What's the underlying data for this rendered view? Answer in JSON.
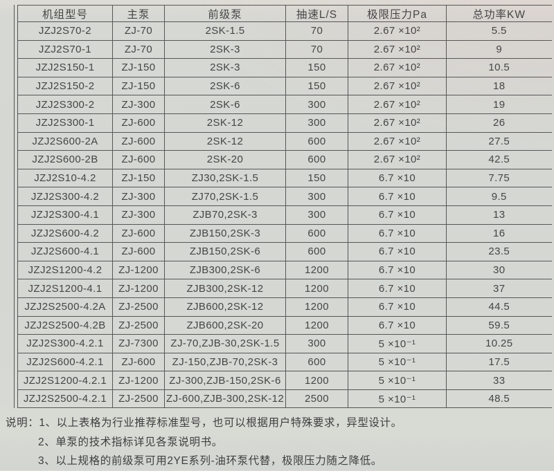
{
  "colors": {
    "paper": "#d5d7d2",
    "ink": "#454545",
    "line": "#565656"
  },
  "table": {
    "headers": [
      "机组型号",
      "主泵",
      "前级泵",
      "抽速L/S",
      "极限压力Pa",
      "总功率KW"
    ],
    "rows": [
      [
        "JZJ2S70-2",
        "ZJ-70",
        "2SK-1.5",
        "70",
        "2.67 ×10²",
        "5.5"
      ],
      [
        "JZJ2S70-1",
        "ZJ-70",
        "2SK-3",
        "70",
        "2.67 ×10²",
        "9"
      ],
      [
        "JZJ2S150-1",
        "ZJ-150",
        "2SK-3",
        "150",
        "2.67 ×10²",
        "10.5"
      ],
      [
        "JZJ2S150-2",
        "ZJ-150",
        "2SK-6",
        "150",
        "2.67 ×10²",
        "18"
      ],
      [
        "JZJ2S300-2",
        "ZJ-300",
        "2SK-6",
        "300",
        "2.67 ×10²",
        "19"
      ],
      [
        "JZJ2S300-1",
        "ZJ-600",
        "2SK-12",
        "300",
        "2.67 ×10²",
        "26"
      ],
      [
        "JZJ2S600-2A",
        "ZJ-600",
        "2SK-12",
        "600",
        "2.67 ×10²",
        "27.5"
      ],
      [
        "JZJ2S600-2B",
        "ZJ-600",
        "2SK-20",
        "600",
        "2.67 ×10²",
        "42.5"
      ],
      [
        "JZJ2S10-4.2",
        "ZJ-150",
        "ZJ30,2SK-1.5",
        "150",
        "6.7 ×10",
        "7.75"
      ],
      [
        "JZJ2S300-4.2",
        "ZJ-300",
        "ZJ70,2SK-1.5",
        "300",
        "6.7 ×10",
        "9.5"
      ],
      [
        "JZJ2S300-4.1",
        "ZJ-300",
        "ZJB70,2SK-3",
        "300",
        "6.7 ×10",
        "13"
      ],
      [
        "JZJ2S600-4.2",
        "ZJ-600",
        "ZJB150,2SK-3",
        "600",
        "6.7 ×10",
        "16"
      ],
      [
        "JZJ2S600-4.1",
        "ZJ-600",
        "ZJB150,2SK-6",
        "600",
        "6.7 ×10",
        "23.5"
      ],
      [
        "JZJ2S1200-4.2",
        "ZJ-1200",
        "ZJB300,2SK-6",
        "1200",
        "6.7 ×10",
        "30"
      ],
      [
        "JZJ2S1200-4.1",
        "ZJ-1200",
        "ZJB300,2SK-12",
        "1200",
        "6.7 ×10",
        "37"
      ],
      [
        "JZJ2S2500-4.2A",
        "ZJ-2500",
        "ZJB600,2SK-12",
        "1200",
        "6.7 ×10",
        "44.5"
      ],
      [
        "JZJ2S2500-4.2B",
        "ZJ-2500",
        "ZJB600,2SK-20",
        "1200",
        "6.7 ×10",
        "59.5"
      ],
      [
        "JZJ2S300-4.2.1",
        "ZJ-7300",
        "ZJ-70,ZJB-30,2SK-1.5",
        "300",
        "5 ×10⁻¹",
        "10.25"
      ],
      [
        "JZJ2S600-4.2.1",
        "ZJ-600",
        "ZJ-150,ZJB-70,2SK-3",
        "600",
        "5 ×10⁻¹",
        "17.5"
      ],
      [
        "JZJ2S1200-4.2.1",
        "ZJ-1200",
        "ZJ-300,ZJB-150,2SK-6",
        "1200",
        "5 ×10⁻¹",
        "33"
      ],
      [
        "JZJ2S2500-4.2.1",
        "ZJ-2500",
        "ZJ-600,ZJB-300,2SK-12",
        "2500",
        "5 ×10⁻¹",
        "48.5"
      ]
    ]
  },
  "notes": {
    "label": "说明：",
    "items": [
      "1、以上表格为行业推荐标准型号，也可以根据用户特殊要求，异型设计。",
      "2、单泵的技术指标详见各泵说明书。",
      "3、以上规格的前级泵可用2YE系列-油环泵代替，极限压力随之降低。"
    ]
  }
}
